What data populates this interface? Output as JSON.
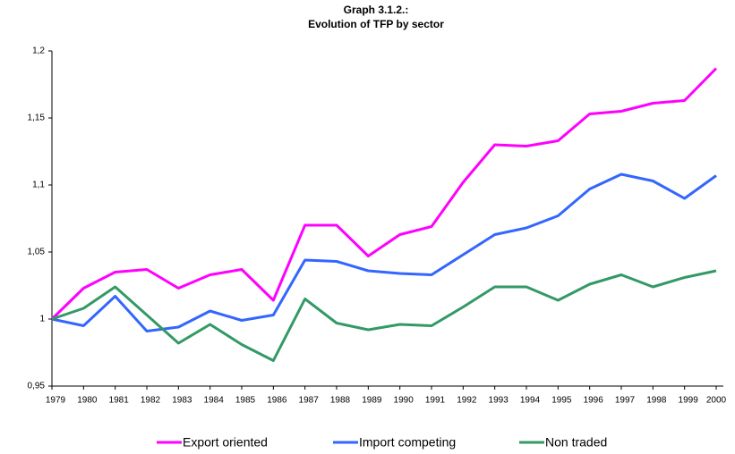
{
  "chart_data": {
    "type": "line",
    "title": "Graph 3.1.2.:",
    "subtitle": "Evolution of TFP by sector",
    "categories": [
      "1979",
      "1980",
      "1981",
      "1982",
      "1983",
      "1984",
      "1985",
      "1986",
      "1987",
      "1988",
      "1989",
      "1990",
      "1991",
      "1992",
      "1993",
      "1994",
      "1995",
      "1996",
      "1997",
      "1998",
      "1999",
      "2000"
    ],
    "series": [
      {
        "name": "Export oriented",
        "color": "#ff00ff",
        "values": [
          1.0,
          1.023,
          1.035,
          1.037,
          1.023,
          1.033,
          1.037,
          1.014,
          1.07,
          1.07,
          1.047,
          1.063,
          1.069,
          1.102,
          1.13,
          1.129,
          1.133,
          1.153,
          1.155,
          1.161,
          1.163,
          1.187
        ]
      },
      {
        "name": "Import competing",
        "color": "#3366ff",
        "values": [
          1.0,
          0.995,
          1.017,
          0.991,
          0.994,
          1.006,
          0.999,
          1.003,
          1.044,
          1.043,
          1.036,
          1.034,
          1.033,
          1.048,
          1.063,
          1.068,
          1.077,
          1.097,
          1.108,
          1.103,
          1.09,
          1.107
        ]
      },
      {
        "name": "Non traded",
        "color": "#339966",
        "values": [
          1.0,
          1.008,
          1.024,
          1.003,
          0.982,
          0.996,
          0.981,
          0.969,
          1.015,
          0.997,
          0.992,
          0.996,
          0.995,
          1.009,
          1.024,
          1.024,
          1.014,
          1.026,
          1.033,
          1.024,
          1.031,
          1.036
        ]
      }
    ],
    "ylim": [
      0.95,
      1.2
    ],
    "yticks": [
      {
        "value": 0.95,
        "label": "0,95"
      },
      1,
      {
        "value": 1.05,
        "label": "1,05"
      },
      {
        "value": 1.1,
        "label": "1,1"
      },
      {
        "value": 1.15,
        "label": "1,15"
      },
      {
        "value": 1.2,
        "label": "1,2"
      }
    ],
    "grid": false,
    "legend": "bottom"
  }
}
